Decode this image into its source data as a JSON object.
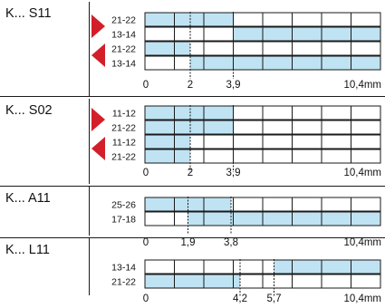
{
  "colors": {
    "fill": "#bfe3f3",
    "arrow": "#d31f2a",
    "line": "#1a1a1a"
  },
  "scale_max_label": "10,4mm",
  "panels": [
    {
      "label": "K... S11",
      "rows": [
        {
          "contact": "21-22",
          "on": [
            [
              0,
              3.9
            ]
          ]
        },
        {
          "contact": "13-14",
          "on": [
            [
              3.9,
              10.4
            ]
          ]
        },
        {
          "contact": "21-22",
          "on": [
            [
              0,
              2
            ]
          ]
        },
        {
          "contact": "13-14",
          "on": [
            [
              2,
              10.4
            ]
          ]
        }
      ],
      "arrows": [
        "right",
        "left"
      ],
      "ticks": [
        {
          "label": "0",
          "value": 0
        },
        {
          "label": "2",
          "value": 2
        },
        {
          "label": "3,9",
          "value": 3.9
        }
      ]
    },
    {
      "label": "K... S02",
      "rows": [
        {
          "contact": "11-12",
          "on": [
            [
              0,
              3.9
            ]
          ]
        },
        {
          "contact": "21-22",
          "on": [
            [
              0,
              3.9
            ]
          ]
        },
        {
          "contact": "11-12",
          "on": [
            [
              0,
              2
            ]
          ]
        },
        {
          "contact": "21-22",
          "on": [
            [
              0,
              2
            ]
          ]
        }
      ],
      "arrows": [
        "right",
        "left"
      ],
      "ticks": [
        {
          "label": "0",
          "value": 0
        },
        {
          "label": "2",
          "value": 2
        },
        {
          "label": "3,9",
          "value": 3.9
        }
      ]
    },
    {
      "label": "K... A11",
      "rows": [
        {
          "contact": "25-26",
          "on": [
            [
              0,
              3.8
            ]
          ]
        },
        {
          "contact": "17-18",
          "on": [
            [
              1.9,
              10.4
            ]
          ]
        }
      ],
      "arrows": [],
      "ticks": [
        {
          "label": "0",
          "value": 0
        },
        {
          "label": "1,9",
          "value": 1.9
        },
        {
          "label": "3,8",
          "value": 3.8
        }
      ]
    },
    {
      "label": "K... L11",
      "rows": [
        {
          "contact": "13-14",
          "on": [
            [
              5.7,
              10.4
            ]
          ]
        },
        {
          "contact": "21-22",
          "on": [
            [
              0,
              4.2
            ]
          ]
        }
      ],
      "arrows": [],
      "ticks": [
        {
          "label": "0",
          "value": 0
        },
        {
          "label": "4,2",
          "value": 4.2
        },
        {
          "label": "5,7",
          "value": 5.7
        }
      ]
    }
  ]
}
